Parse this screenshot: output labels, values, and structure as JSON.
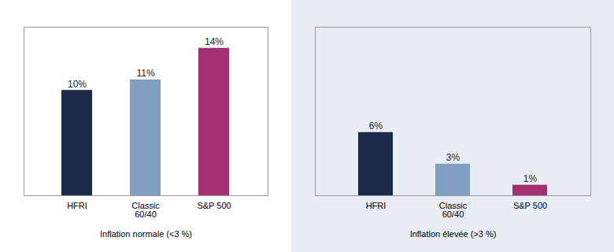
{
  "chart_data": [
    {
      "type": "bar",
      "categories": [
        "HFRI",
        "Classic\n60/40",
        "S&P 500"
      ],
      "values": [
        10,
        11,
        14
      ],
      "value_labels": [
        "10%",
        "11%",
        "14%"
      ],
      "colors": [
        "#1b2a4a",
        "#7f9fc0",
        "#a03070"
      ],
      "xlabel": "Inflation normale (<3 %)",
      "ylim": [
        0,
        16
      ],
      "data_labels": true,
      "tick_labels": "x",
      "grid": false
    },
    {
      "type": "bar",
      "categories": [
        "HFRI",
        "Classic\n60/40",
        "S&P 500"
      ],
      "values": [
        6,
        3,
        1
      ],
      "value_labels": [
        "6%",
        "3%",
        "1%"
      ],
      "colors": [
        "#1b2a4a",
        "#7f9fc0",
        "#a03070"
      ],
      "xlabel": "Inflation élevée (>3 %)",
      "ylim": [
        0,
        16
      ],
      "data_labels": true,
      "tick_labels": "x",
      "grid": false
    }
  ]
}
